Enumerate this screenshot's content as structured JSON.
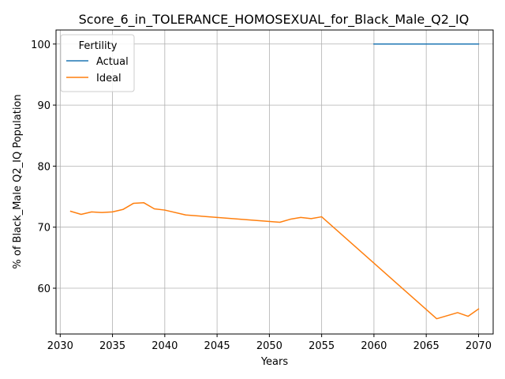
{
  "chart_data": {
    "type": "line",
    "title": "Score_6_in_TOLERANCE_HOMOSEXUAL_for_Black_Male_Q2_IQ",
    "xlabel": "Years",
    "ylabel": "% of Black_Male Q2_IQ Population",
    "xlim": [
      2029.6,
      2071.4
    ],
    "ylim": [
      52.5,
      102.3
    ],
    "xticks": [
      2030,
      2035,
      2040,
      2045,
      2050,
      2055,
      2060,
      2065,
      2070
    ],
    "yticks": [
      60,
      70,
      80,
      90,
      100
    ],
    "grid": true,
    "legend": {
      "title": "Fertility",
      "placement": "top-left"
    },
    "series": [
      {
        "name": "Actual",
        "color": "#1f77b4",
        "x": [
          2060,
          2061,
          2062,
          2063,
          2064,
          2065,
          2066,
          2067,
          2068,
          2069,
          2070
        ],
        "y": [
          100,
          100,
          100,
          100,
          100,
          100,
          100,
          100,
          100,
          100,
          100
        ]
      },
      {
        "name": "Ideal",
        "color": "#ff7f0e",
        "x": [
          2031,
          2032,
          2033,
          2034,
          2035,
          2036,
          2037,
          2038,
          2039,
          2040,
          2042,
          2051,
          2052,
          2053,
          2054,
          2055,
          2066,
          2067,
          2068,
          2069,
          2070
        ],
        "y": [
          72.6,
          72.1,
          72.5,
          72.4,
          72.5,
          72.9,
          73.9,
          74.0,
          73.0,
          72.8,
          72.0,
          70.8,
          71.3,
          71.6,
          71.4,
          71.7,
          55.0,
          55.5,
          56.0,
          55.4,
          56.6
        ]
      }
    ]
  }
}
